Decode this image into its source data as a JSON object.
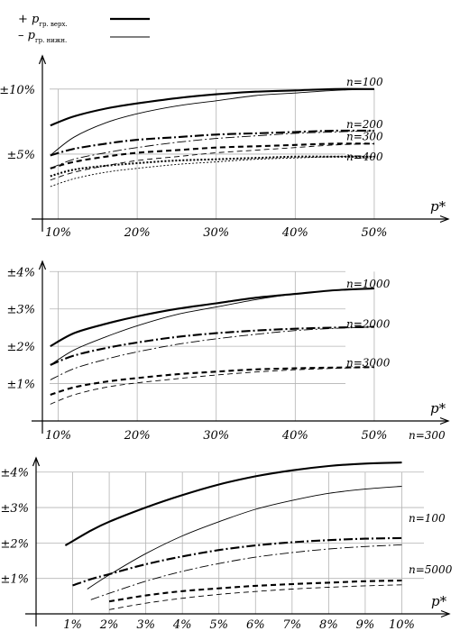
{
  "legend": [
    {
      "sign": "+",
      "symbol": "p",
      "sub": "гр. верх.",
      "style": "thick-solid"
    },
    {
      "sign": "–",
      "symbol": "p",
      "sub": "гр. нижн.",
      "style": "thin-solid"
    }
  ],
  "chart_data": [
    {
      "type": "line",
      "xlabel": "p*",
      "x_ticks": [
        "10%",
        "20%",
        "30%",
        "40%",
        "50%"
      ],
      "y_ticks": [
        "±5%",
        "±10%"
      ],
      "xlim": [
        8,
        58
      ],
      "ylim": [
        0,
        12
      ],
      "grid": true,
      "x": [
        9,
        12,
        16,
        20,
        25,
        30,
        35,
        40,
        45,
        50
      ],
      "series": [
        {
          "name": "n=100",
          "dash": "solid",
          "upper": [
            7.2,
            7.9,
            8.5,
            8.9,
            9.3,
            9.6,
            9.8,
            9.9,
            10.0,
            10.0
          ],
          "lower": [
            4.9,
            6.3,
            7.4,
            8.1,
            8.7,
            9.1,
            9.5,
            9.7,
            9.9,
            10.0
          ]
        },
        {
          "name": "n=200",
          "dash": "dashdot",
          "upper": [
            4.9,
            5.4,
            5.8,
            6.1,
            6.3,
            6.5,
            6.6,
            6.7,
            6.8,
            6.8
          ],
          "lower": [
            3.9,
            4.6,
            5.1,
            5.5,
            5.9,
            6.2,
            6.4,
            6.6,
            6.7,
            6.8
          ]
        },
        {
          "name": "n=300",
          "dash": "dashed",
          "upper": [
            3.9,
            4.4,
            4.8,
            5.1,
            5.3,
            5.5,
            5.6,
            5.7,
            5.8,
            5.8
          ],
          "lower": [
            3.0,
            3.6,
            4.1,
            4.5,
            4.8,
            5.1,
            5.3,
            5.5,
            5.7,
            5.8
          ]
        },
        {
          "name": "n=400",
          "dash": "dotted",
          "upper": [
            3.3,
            3.8,
            4.1,
            4.3,
            4.5,
            4.6,
            4.7,
            4.8,
            4.8,
            4.8
          ],
          "lower": [
            2.5,
            3.1,
            3.6,
            3.9,
            4.2,
            4.4,
            4.6,
            4.7,
            4.8,
            4.8
          ]
        }
      ]
    },
    {
      "type": "line",
      "xlabel": "p*",
      "x_ticks": [
        "10%",
        "20%",
        "30%",
        "40%",
        "50%"
      ],
      "y_ticks": [
        "±1%",
        "±2%",
        "±3%",
        "±4%"
      ],
      "xlim": [
        8,
        58
      ],
      "ylim": [
        0,
        4.2
      ],
      "grid": true,
      "x": [
        9,
        12,
        16,
        20,
        25,
        30,
        35,
        40,
        45,
        50
      ],
      "series": [
        {
          "name": "n=1000",
          "dash": "solid",
          "upper": [
            2.0,
            2.35,
            2.6,
            2.8,
            3.0,
            3.15,
            3.3,
            3.4,
            3.5,
            3.55
          ],
          "lower": [
            1.5,
            1.9,
            2.25,
            2.55,
            2.85,
            3.05,
            3.25,
            3.4,
            3.5,
            3.55
          ]
        },
        {
          "name": "n=2000",
          "dash": "dashdot",
          "upper": [
            1.5,
            1.75,
            1.95,
            2.1,
            2.25,
            2.35,
            2.42,
            2.47,
            2.5,
            2.52
          ],
          "lower": [
            1.1,
            1.4,
            1.65,
            1.85,
            2.05,
            2.2,
            2.32,
            2.42,
            2.48,
            2.52
          ]
        },
        {
          "name": "n=3000",
          "dash": "dashed",
          "upper": [
            0.7,
            0.9,
            1.05,
            1.15,
            1.25,
            1.32,
            1.38,
            1.41,
            1.43,
            1.44
          ],
          "lower": [
            0.45,
            0.7,
            0.9,
            1.02,
            1.13,
            1.23,
            1.31,
            1.37,
            1.41,
            1.44
          ]
        }
      ]
    },
    {
      "type": "line",
      "xlabel": "p*",
      "x_ticks": [
        "1%",
        "2%",
        "3%",
        "4%",
        "5%",
        "6%",
        "7%",
        "8%",
        "9%",
        "10%"
      ],
      "y_ticks": [
        "±1%",
        "±2%",
        "±3%",
        "±4%"
      ],
      "xlim": [
        0,
        11
      ],
      "ylim": [
        0,
        4.4
      ],
      "grid": true,
      "series": [
        {
          "name": "n=300",
          "dash": "solid",
          "upper": {
            "x": [
              0.8,
              1.5,
              2,
              3,
              4,
              5,
              6,
              7,
              8,
              9,
              10
            ],
            "y": [
              1.93,
              2.35,
              2.6,
              3.0,
              3.35,
              3.65,
              3.88,
              4.05,
              4.17,
              4.24,
              4.27
            ]
          },
          "lower": {
            "x": [
              1.4,
              2,
              3,
              4,
              5,
              6,
              7,
              8,
              9,
              10
            ],
            "y": [
              0.7,
              1.1,
              1.7,
              2.2,
              2.6,
              2.95,
              3.2,
              3.4,
              3.52,
              3.6
            ]
          }
        },
        {
          "name": "n=100",
          "dash": "dashdot",
          "upper": {
            "x": [
              1,
              1.5,
              2,
              3,
              4,
              5,
              6,
              7,
              8,
              9,
              10
            ],
            "y": [
              0.8,
              0.98,
              1.12,
              1.4,
              1.62,
              1.8,
              1.93,
              2.02,
              2.08,
              2.12,
              2.14
            ]
          },
          "lower": {
            "x": [
              1.5,
              2,
              3,
              4,
              5,
              6,
              7,
              8,
              9,
              10
            ],
            "y": [
              0.4,
              0.58,
              0.92,
              1.2,
              1.42,
              1.6,
              1.73,
              1.83,
              1.9,
              1.95
            ]
          }
        },
        {
          "name": "n=5000",
          "dash": "dashed",
          "upper": {
            "x": [
              2,
              3,
              4,
              5,
              6,
              7,
              8,
              9,
              10
            ],
            "y": [
              0.35,
              0.52,
              0.64,
              0.72,
              0.79,
              0.84,
              0.88,
              0.92,
              0.94
            ]
          },
          "lower": {
            "x": [
              2,
              3,
              4,
              5,
              6,
              7,
              8,
              9,
              10
            ],
            "y": [
              0.12,
              0.3,
              0.44,
              0.55,
              0.63,
              0.7,
              0.75,
              0.79,
              0.82
            ]
          }
        }
      ]
    }
  ]
}
